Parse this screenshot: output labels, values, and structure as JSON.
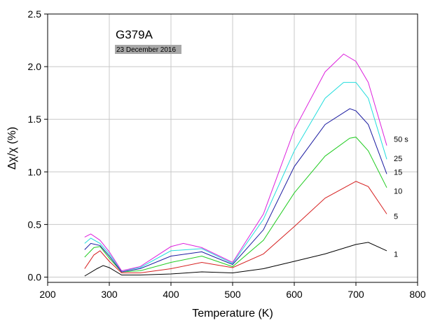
{
  "chart_data": {
    "type": "line",
    "title": "G379A",
    "date_label": "23 December 2016",
    "xlabel": "Temperature (K)",
    "ylabel": "Δχ/χ (%)",
    "xlim": [
      200,
      800
    ],
    "ylim": [
      -0.05,
      2.5
    ],
    "x_ticks": [
      200,
      300,
      400,
      500,
      600,
      700,
      800
    ],
    "y_ticks": [
      0.0,
      0.5,
      1.0,
      1.5,
      2.0,
      2.5
    ],
    "x_tick_labels": [
      "200",
      "300",
      "400",
      "500",
      "600",
      "700",
      "800"
    ],
    "y_tick_labels": [
      "0.0",
      "0.5",
      "1.0",
      "1.5",
      "2.0",
      "2.5"
    ],
    "grid": true,
    "series": [
      {
        "name": "1",
        "color": "#000000",
        "x": [
          260,
          280,
          290,
          300,
          320,
          350,
          400,
          450,
          500,
          550,
          600,
          650,
          700,
          720,
          750
        ],
        "y": [
          0.01,
          0.08,
          0.11,
          0.09,
          0.02,
          0.02,
          0.03,
          0.05,
          0.04,
          0.08,
          0.15,
          0.22,
          0.31,
          0.33,
          0.25
        ]
      },
      {
        "name": "5",
        "color": "#d62020",
        "x": [
          260,
          275,
          285,
          300,
          320,
          350,
          400,
          450,
          500,
          550,
          600,
          650,
          700,
          720,
          750
        ],
        "y": [
          0.08,
          0.21,
          0.25,
          0.15,
          0.04,
          0.04,
          0.08,
          0.14,
          0.09,
          0.22,
          0.48,
          0.75,
          0.91,
          0.86,
          0.6
        ]
      },
      {
        "name": "10",
        "color": "#22cc22",
        "x": [
          260,
          275,
          285,
          300,
          320,
          350,
          400,
          450,
          500,
          550,
          600,
          650,
          690,
          700,
          720,
          750
        ],
        "y": [
          0.19,
          0.28,
          0.29,
          0.18,
          0.05,
          0.06,
          0.14,
          0.2,
          0.1,
          0.35,
          0.8,
          1.15,
          1.32,
          1.33,
          1.2,
          0.85
        ]
      },
      {
        "name": "15",
        "color": "#1a1aa0",
        "x": [
          260,
          270,
          285,
          300,
          320,
          350,
          400,
          450,
          500,
          550,
          600,
          650,
          690,
          700,
          720,
          750
        ],
        "y": [
          0.26,
          0.32,
          0.3,
          0.2,
          0.05,
          0.08,
          0.2,
          0.24,
          0.12,
          0.45,
          1.05,
          1.45,
          1.6,
          1.58,
          1.45,
          0.98
        ]
      },
      {
        "name": "25",
        "color": "#22dddd",
        "x": [
          260,
          270,
          285,
          300,
          320,
          350,
          400,
          450,
          500,
          550,
          600,
          650,
          680,
          700,
          720,
          750
        ],
        "y": [
          0.32,
          0.37,
          0.32,
          0.22,
          0.06,
          0.09,
          0.25,
          0.27,
          0.13,
          0.55,
          1.2,
          1.7,
          1.85,
          1.85,
          1.7,
          1.12
        ]
      },
      {
        "name": "50 s",
        "color": "#dd22dd",
        "x": [
          260,
          270,
          285,
          300,
          320,
          350,
          400,
          420,
          450,
          500,
          550,
          600,
          650,
          680,
          700,
          720,
          750
        ],
        "y": [
          0.38,
          0.41,
          0.35,
          0.24,
          0.06,
          0.1,
          0.29,
          0.32,
          0.28,
          0.14,
          0.6,
          1.4,
          1.95,
          2.12,
          2.05,
          1.85,
          1.25
        ]
      }
    ],
    "series_label_positions": [
      {
        "name": "1",
        "y": 0.22
      },
      {
        "name": "5",
        "y": 0.58
      },
      {
        "name": "10",
        "y": 0.82
      },
      {
        "name": "15",
        "y": 1.0
      },
      {
        "name": "25",
        "y": 1.13
      },
      {
        "name": "50 s",
        "y": 1.31
      }
    ]
  }
}
